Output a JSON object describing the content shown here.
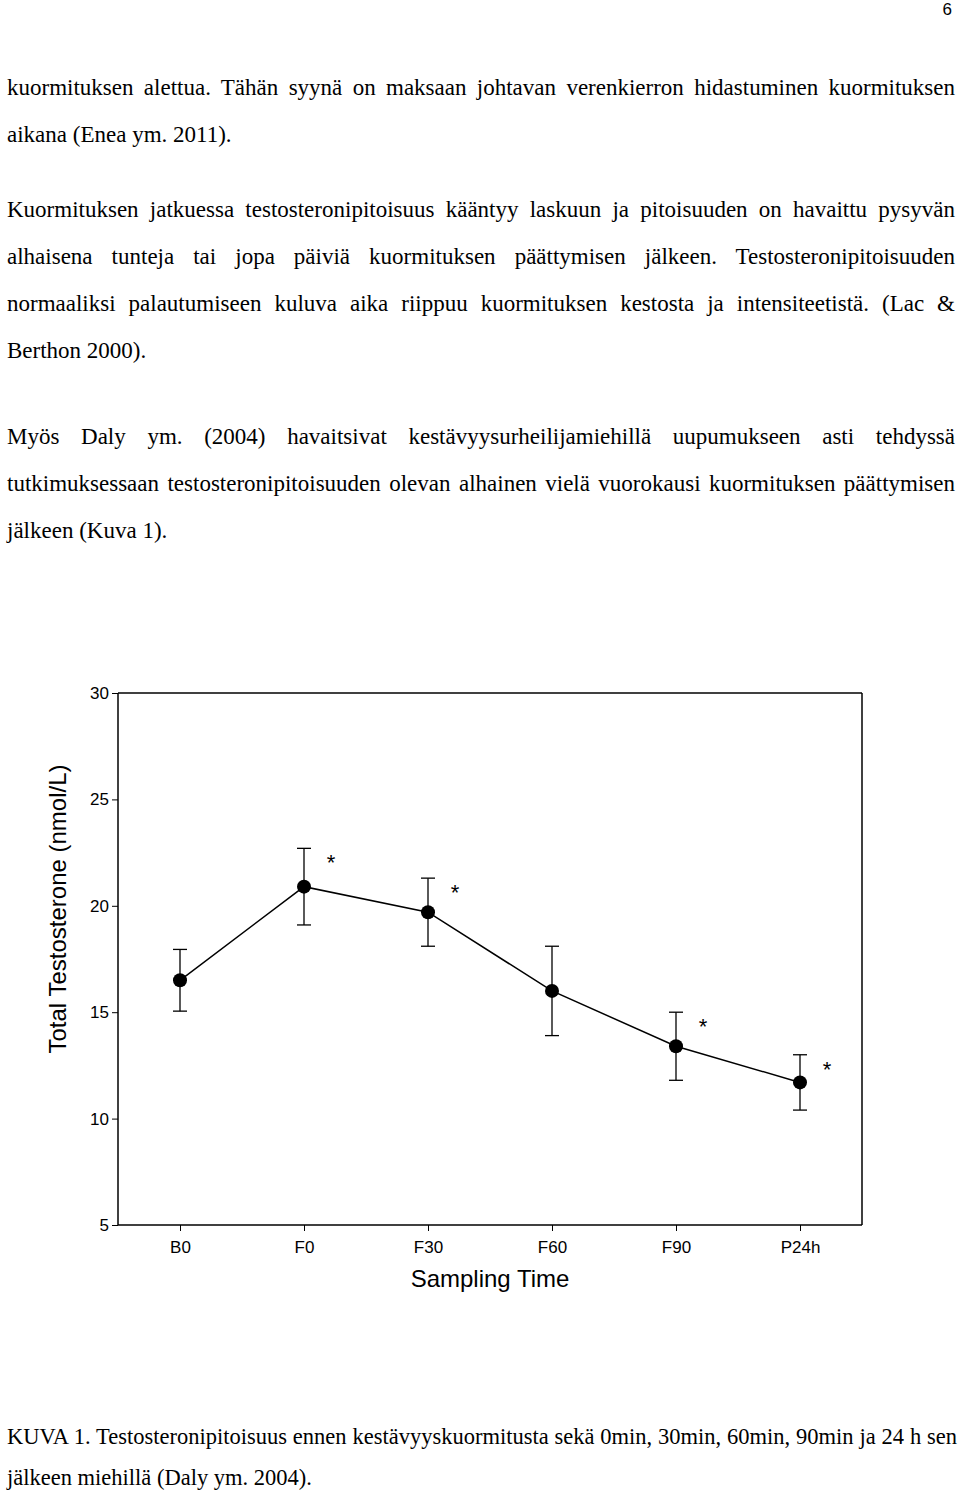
{
  "page_number": "6",
  "paragraphs": [
    "kuormituksen alettua. Tähän syynä on maksaan johtavan verenkierron hidastuminen kuormituksen aikana (Enea ym. 2011).",
    "Kuormituksen jatkuessa testosteronipitoisuus kääntyy laskuun ja pitoisuuden on havaittu pysyvän alhaisena tunteja tai jopa päiviä kuormituksen päättymisen jälkeen. Testosteronipitoisuuden normaaliksi palautumiseen kuluva aika riippuu kuormituksen kestosta ja intensiteetistä. (Lac & Berthon 2000).",
    "Myös Daly ym. (2004) havaitsivat kestävyysurheilijamiehillä uupumukseen asti tehdyssä tutkimuksessaan testosteronipitoisuuden olevan alhainen vielä vuorokausi kuormituksen päättymisen jälkeen (Kuva 1)."
  ],
  "chart_data": {
    "type": "line",
    "x_label": "Sampling Time",
    "y_label": "Total Testosterone (nmol/L)",
    "categories": [
      "B0",
      "F0",
      "F30",
      "F60",
      "F90",
      "P24h"
    ],
    "values": [
      16.5,
      20.9,
      19.7,
      16.0,
      13.4,
      11.7
    ],
    "errors": [
      1.45,
      1.8,
      1.6,
      2.1,
      1.6,
      1.3
    ],
    "color": "#000000",
    "marker": "circle",
    "line_style": "solid",
    "ylim": [
      5,
      30
    ],
    "yticks": [
      5,
      10,
      15,
      20,
      25,
      30
    ],
    "annotations": [
      {
        "x": "F0",
        "text": "*"
      },
      {
        "x": "F30",
        "text": "*"
      },
      {
        "x": "F90",
        "text": "*"
      },
      {
        "x": "P24h",
        "text": "*"
      }
    ]
  },
  "caption": "KUVA 1. Testosteronipitoisuus ennen kestävyyskuormitusta sekä 0min, 30min, 60min, 90min ja 24 h sen jälkeen miehillä (Daly ym. 2004)."
}
